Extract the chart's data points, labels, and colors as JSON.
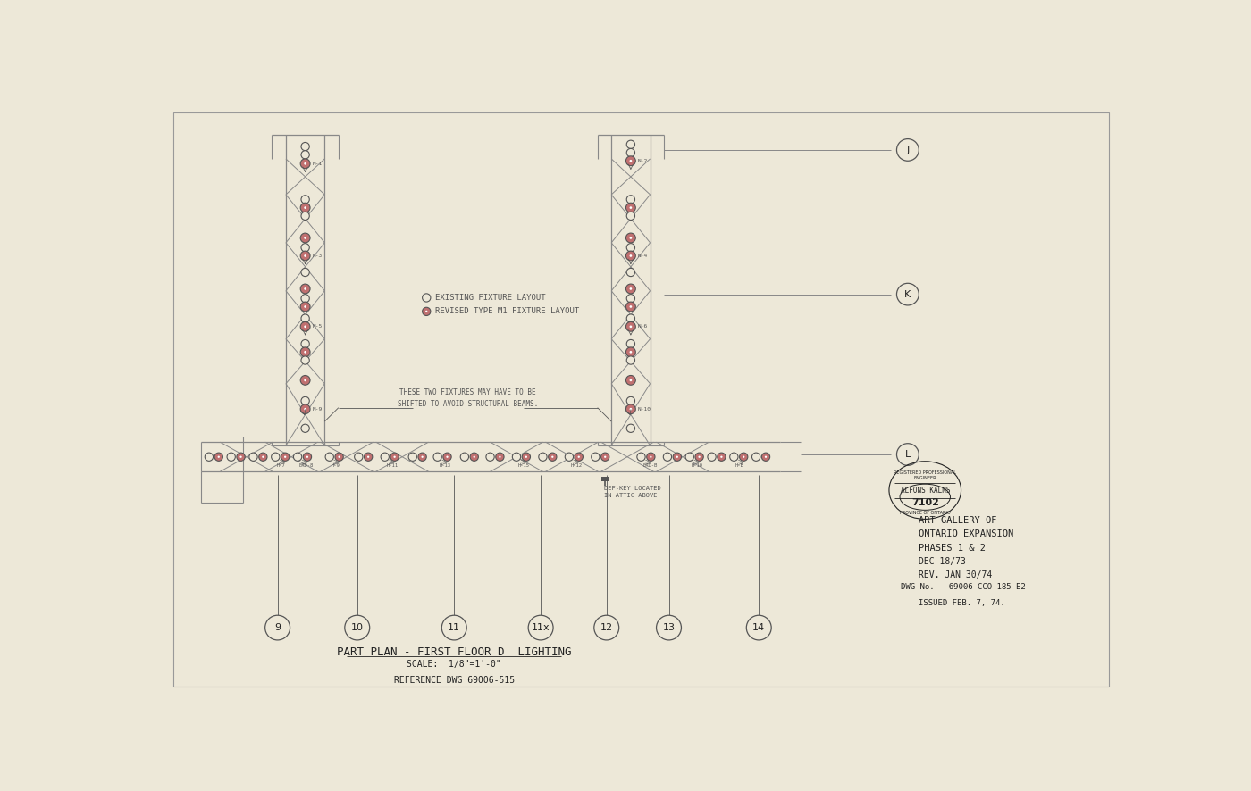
{
  "bg_color": "#ede8d8",
  "paper_color": "#ede8d8",
  "border_color": "#222222",
  "line_color": "#888888",
  "dark_line": "#555555",
  "red_fill": "#c07070",
  "title_text": "PART PLAN - FIRST FLOOR D  LIGHTING",
  "scale_text": "SCALE:  1/8\"=1'-0\"",
  "ref_text": "REFERENCE DWG 69006-515",
  "project_text": "ART GALLERY OF\nONTARIO EXPANSION\nPHASES 1 & 2",
  "date_text": "DEC 18/73\nREV. JAN 30/74",
  "dwg_text": "DWG No. - 69006-CCO 185-E2",
  "issued_text": "ISSUED FEB. 7, 74.",
  "stamp_name": "ALFONS KALNS",
  "stamp_number": "7102",
  "legend_existing": "EXISTING FIXTURE LAYOUT",
  "legend_revised": "REVISED TYPE M1 FIXTURE LAYOUT",
  "grid_labels_bottom": [
    "9",
    "10",
    "11",
    "11x",
    "12",
    "13",
    "14"
  ],
  "grid_labels_right": [
    "J",
    "K",
    "L"
  ],
  "note_text": "THESE TWO FIXTURES MAY HAVE TO BE\nSHIFTED TO AVOID STRUCTURAL BEAMS."
}
